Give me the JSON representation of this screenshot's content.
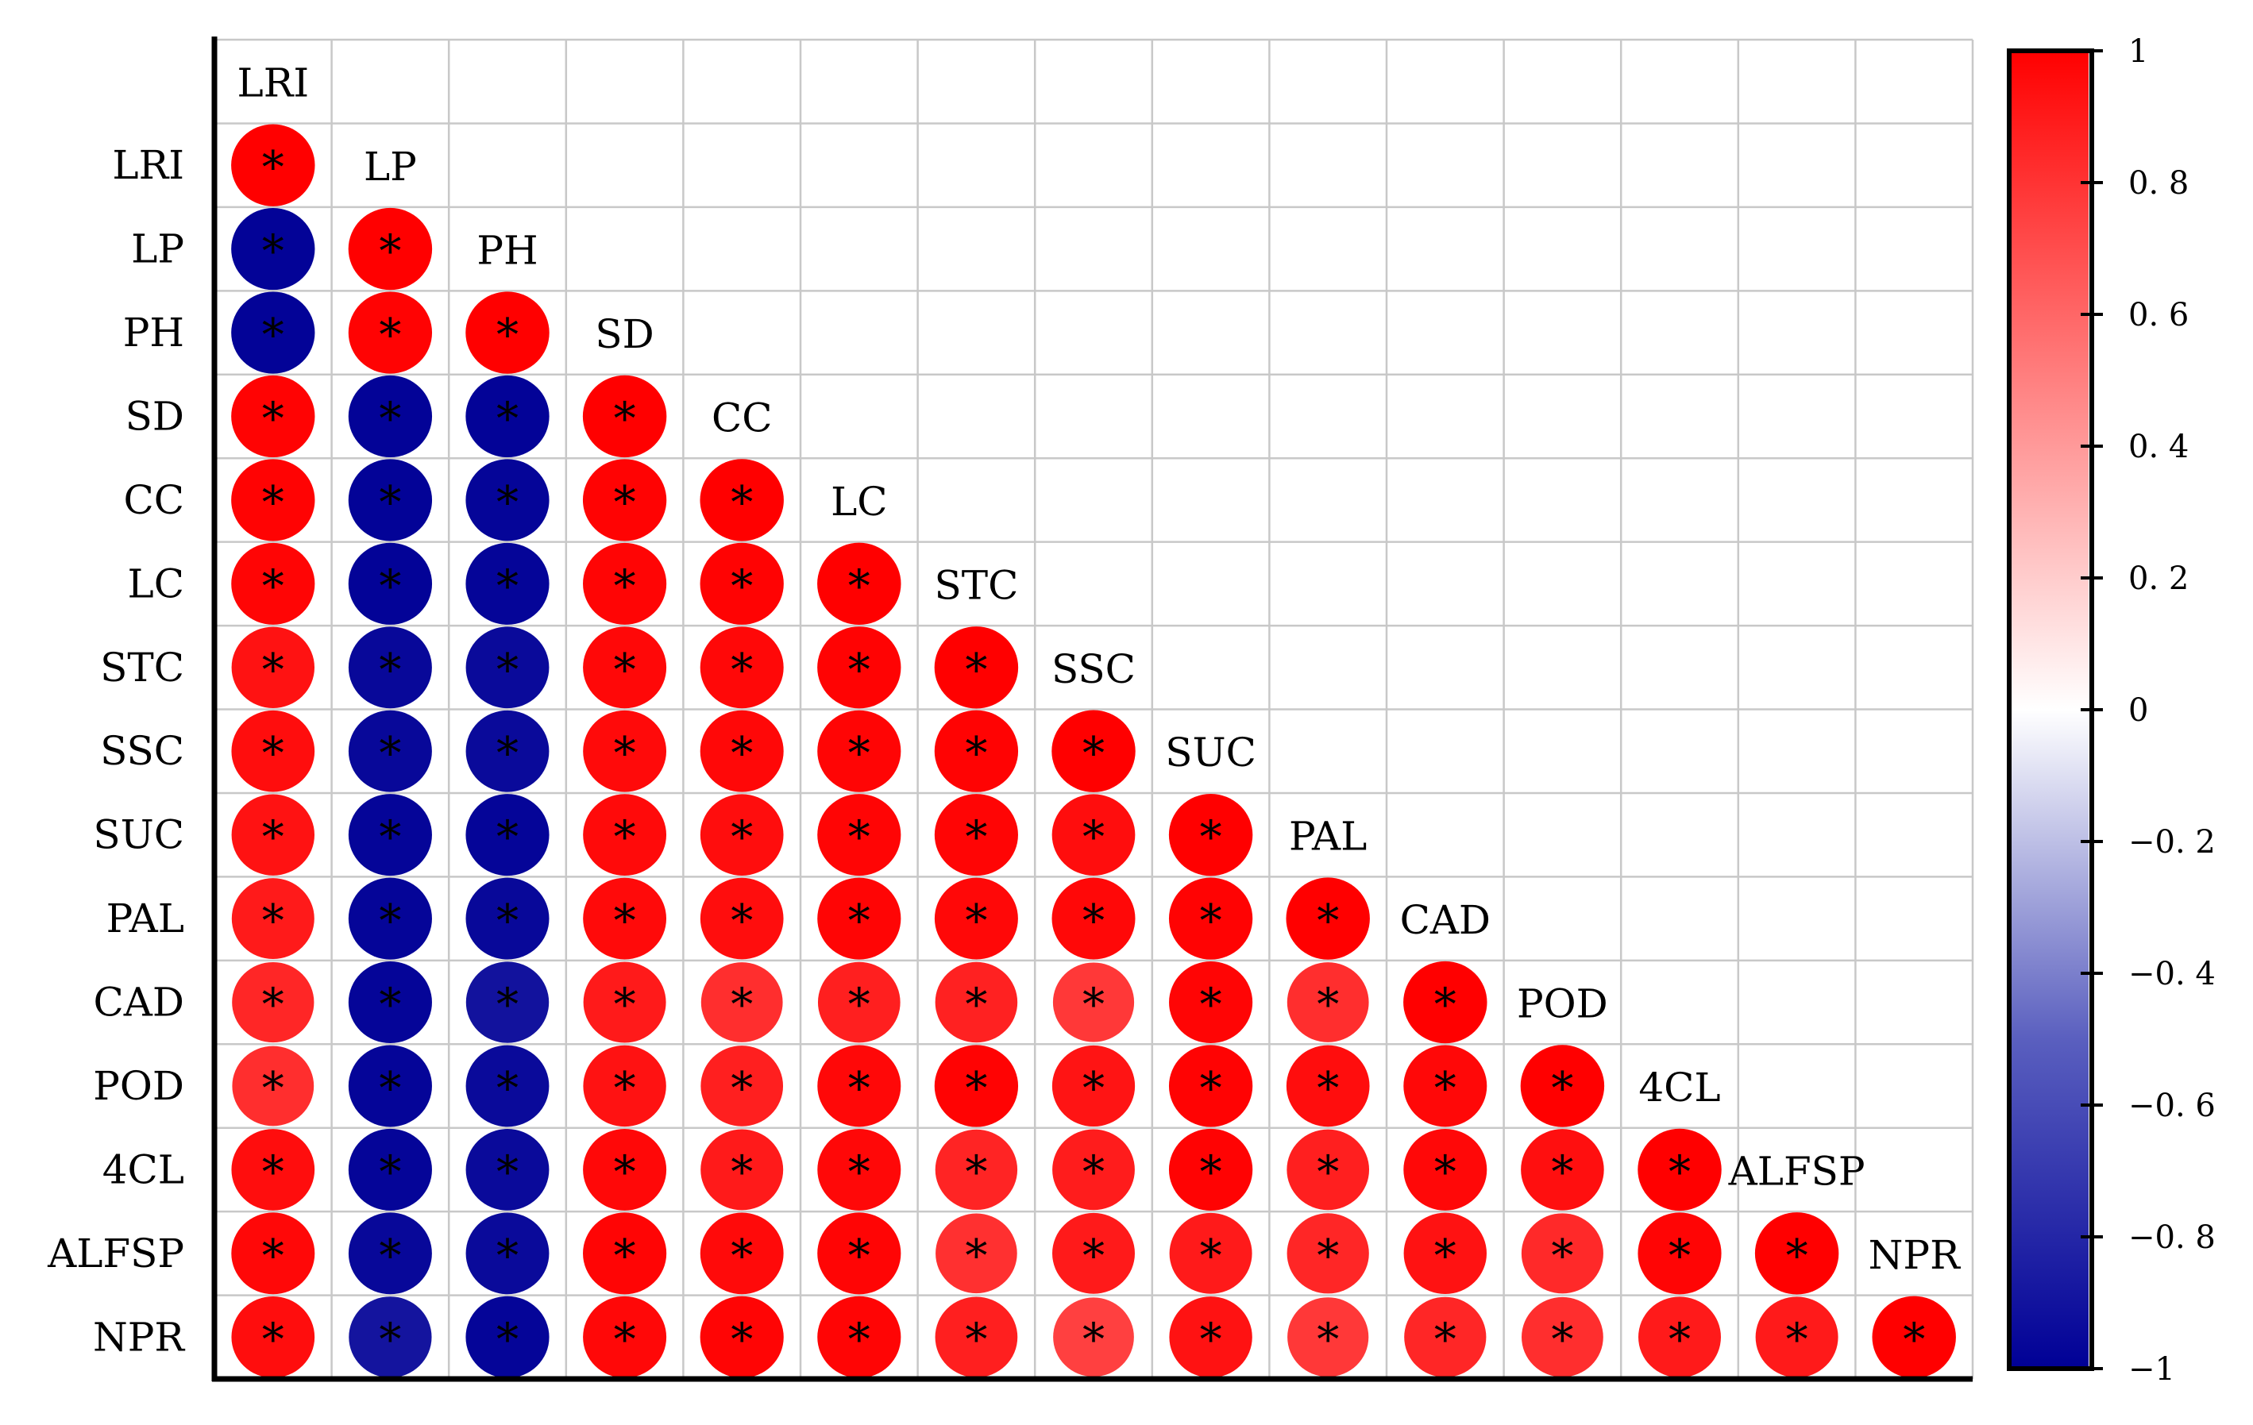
{
  "chart_data": {
    "type": "heatmap",
    "subtype": "correlation-circle-lower-triangle",
    "variables": [
      "LRI",
      "LP",
      "PH",
      "SD",
      "CC",
      "LC",
      "STC",
      "SSC",
      "SUC",
      "PAL",
      "CAD",
      "POD",
      "4CL",
      "ALFSP",
      "NPR"
    ],
    "matrix": [
      [
        1,
        -0.99,
        -0.99,
        0.99,
        0.99,
        0.98,
        0.93,
        0.95,
        0.93,
        0.9,
        0.85,
        0.82,
        0.95,
        0.97,
        0.95
      ],
      [
        -0.99,
        1,
        0.99,
        -0.99,
        -0.99,
        -0.99,
        -0.97,
        -0.97,
        -0.98,
        -0.98,
        -0.98,
        -0.98,
        -0.98,
        -0.97,
        -0.92
      ],
      [
        -0.99,
        0.99,
        1,
        -0.99,
        -0.98,
        -0.98,
        -0.96,
        -0.96,
        -0.98,
        -0.97,
        -0.93,
        -0.96,
        -0.96,
        -0.96,
        -0.98
      ],
      [
        0.99,
        -0.99,
        -0.99,
        1,
        0.99,
        0.98,
        0.97,
        0.96,
        0.96,
        0.96,
        0.9,
        0.93,
        0.97,
        0.98,
        0.97
      ],
      [
        0.99,
        -0.99,
        -0.98,
        0.99,
        1,
        0.99,
        0.97,
        0.97,
        0.95,
        0.95,
        0.82,
        0.88,
        0.9,
        0.96,
        0.98
      ],
      [
        0.98,
        -0.99,
        -0.98,
        0.98,
        0.99,
        1,
        0.99,
        0.98,
        0.98,
        0.98,
        0.88,
        0.97,
        0.97,
        0.98,
        0.98
      ],
      [
        0.93,
        -0.97,
        -0.96,
        0.97,
        0.97,
        0.99,
        1,
        0.99,
        0.98,
        0.97,
        0.87,
        0.99,
        0.86,
        0.81,
        0.88
      ],
      [
        0.95,
        -0.97,
        -0.96,
        0.96,
        0.97,
        0.98,
        0.99,
        1,
        0.95,
        0.97,
        0.78,
        0.92,
        0.89,
        0.9,
        0.75
      ],
      [
        0.93,
        -0.98,
        -0.98,
        0.96,
        0.95,
        0.98,
        0.98,
        0.95,
        1,
        0.99,
        0.98,
        0.99,
        0.99,
        0.9,
        0.93
      ],
      [
        0.9,
        -0.98,
        -0.97,
        0.96,
        0.95,
        0.98,
        0.97,
        0.97,
        0.99,
        1,
        0.82,
        0.95,
        0.88,
        0.85,
        0.78
      ],
      [
        0.85,
        -0.98,
        -0.93,
        0.9,
        0.82,
        0.88,
        0.87,
        0.78,
        0.98,
        0.82,
        1,
        0.97,
        0.97,
        0.93,
        0.85
      ],
      [
        0.82,
        -0.98,
        -0.96,
        0.93,
        0.88,
        0.97,
        0.99,
        0.92,
        0.99,
        0.95,
        0.97,
        1,
        0.94,
        0.84,
        0.82
      ],
      [
        0.95,
        -0.98,
        -0.96,
        0.97,
        0.9,
        0.97,
        0.86,
        0.89,
        0.99,
        0.88,
        0.97,
        0.94,
        1,
        0.98,
        0.9
      ],
      [
        0.97,
        -0.97,
        -0.96,
        0.98,
        0.96,
        0.98,
        0.81,
        0.9,
        0.9,
        0.85,
        0.93,
        0.84,
        0.98,
        1,
        0.9
      ],
      [
        0.95,
        -0.92,
        -0.98,
        0.97,
        0.98,
        0.98,
        0.88,
        0.75,
        0.93,
        0.78,
        0.85,
        0.82,
        0.9,
        0.9,
        1
      ]
    ],
    "significance_marker": "*",
    "colorbar": {
      "range": [
        -1,
        1
      ],
      "ticks": [
        "1",
        "0. 8",
        "0. 6",
        "0. 4",
        "0. 2",
        "0",
        "−0. 2",
        "−0. 4",
        "−0. 6",
        "−0. 8",
        "−1"
      ],
      "tick_values": [
        1,
        0.8,
        0.6,
        0.4,
        0.2,
        0,
        -0.2,
        -0.4,
        -0.6,
        -0.8,
        -1
      ],
      "colors": {
        "negative": "#000096",
        "zero": "#ffffff",
        "positive": "#ff0000"
      }
    },
    "grid": true,
    "layout": "lower-triangle, diagonal labels"
  }
}
